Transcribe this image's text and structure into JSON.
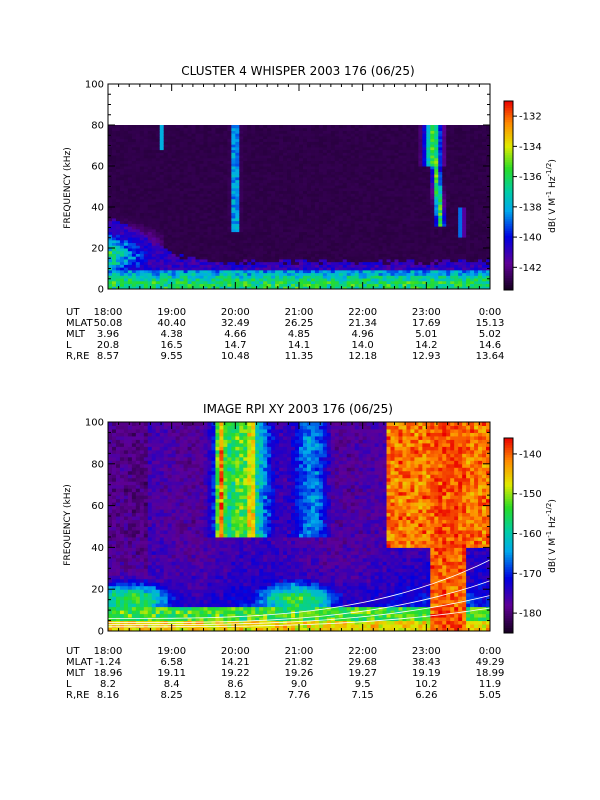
{
  "chart_data": [
    {
      "type": "heatmap",
      "title": "CLUSTER 4 WHISPER 2003 176 (06/25)",
      "ylabel": "FREQUENCY (kHz)",
      "ylim": [
        0,
        100
      ],
      "yticks": [
        "0",
        "20",
        "40",
        "60",
        "80",
        "100"
      ],
      "x_ticks": [
        "18:00",
        "19:00",
        "20:00",
        "21:00",
        "22:00",
        "23:00",
        "0:00"
      ],
      "data_top_khz": 80,
      "colorbar": {
        "label": "dB( V M",
        "label_sup1": "-1",
        "label_mid": " Hz",
        "label_sup2": "-1/2",
        "label_end": ")",
        "range": [
          -143.5,
          -131
        ],
        "ticks": [
          "-132",
          "-134",
          "-136",
          "-138",
          "-140",
          "-142"
        ]
      },
      "ephemeris": [
        {
          "label": "UT",
          "values": [
            "18:00",
            "19:00",
            "20:00",
            "21:00",
            "22:00",
            "23:00",
            "0:00"
          ]
        },
        {
          "label": "MLAT",
          "values": [
            "50.08",
            "40.40",
            "32.49",
            "26.25",
            "21.34",
            "17.69",
            "15.13"
          ]
        },
        {
          "label": "MLT",
          "values": [
            "3.96",
            "4.38",
            "4.66",
            "4.85",
            "4.96",
            "5.01",
            "5.02"
          ]
        },
        {
          "label": "L",
          "values": [
            "20.8",
            "16.5",
            "14.7",
            "14.1",
            "14.0",
            "14.2",
            "14.6"
          ]
        },
        {
          "label": "R,RE",
          "values": [
            "8.57",
            "9.55",
            "10.48",
            "11.35",
            "12.18",
            "12.93",
            "13.64"
          ]
        }
      ]
    },
    {
      "type": "heatmap",
      "title": "IMAGE RPI XY 2003 176 (06/25)",
      "ylabel": "FREQUENCY (kHz)",
      "ylim": [
        0,
        100
      ],
      "yticks": [
        "0",
        "20",
        "40",
        "60",
        "80",
        "100"
      ],
      "x_ticks": [
        "18:00",
        "19:00",
        "20:00",
        "21:00",
        "22:00",
        "23:00",
        "0:00"
      ],
      "colorbar": {
        "label": "dB( V M",
        "label_sup1": "-1",
        "label_mid": " Hz",
        "label_sup2": "-1/2",
        "label_end": ")",
        "range": [
          -185,
          -136
        ],
        "ticks": [
          "-140",
          "-150",
          "-160",
          "-170",
          "-180"
        ]
      },
      "ephemeris": [
        {
          "label": "UT",
          "values": [
            "18:00",
            "19:00",
            "20:00",
            "21:00",
            "22:00",
            "23:00",
            "0:00"
          ]
        },
        {
          "label": "MLAT",
          "values": [
            "-1.24",
            "6.58",
            "14.21",
            "21.82",
            "29.68",
            "38.43",
            "49.29"
          ]
        },
        {
          "label": "MLT",
          "values": [
            "18.96",
            "19.11",
            "19.22",
            "19.26",
            "19.27",
            "19.19",
            "18.99"
          ]
        },
        {
          "label": "L",
          "values": [
            "8.2",
            "8.4",
            "8.6",
            "9.0",
            "9.5",
            "10.2",
            "11.9"
          ]
        },
        {
          "label": "R,RE",
          "values": [
            "8.16",
            "8.25",
            "8.12",
            "7.76",
            "7.15",
            "6.26",
            "5.05"
          ]
        }
      ]
    }
  ]
}
